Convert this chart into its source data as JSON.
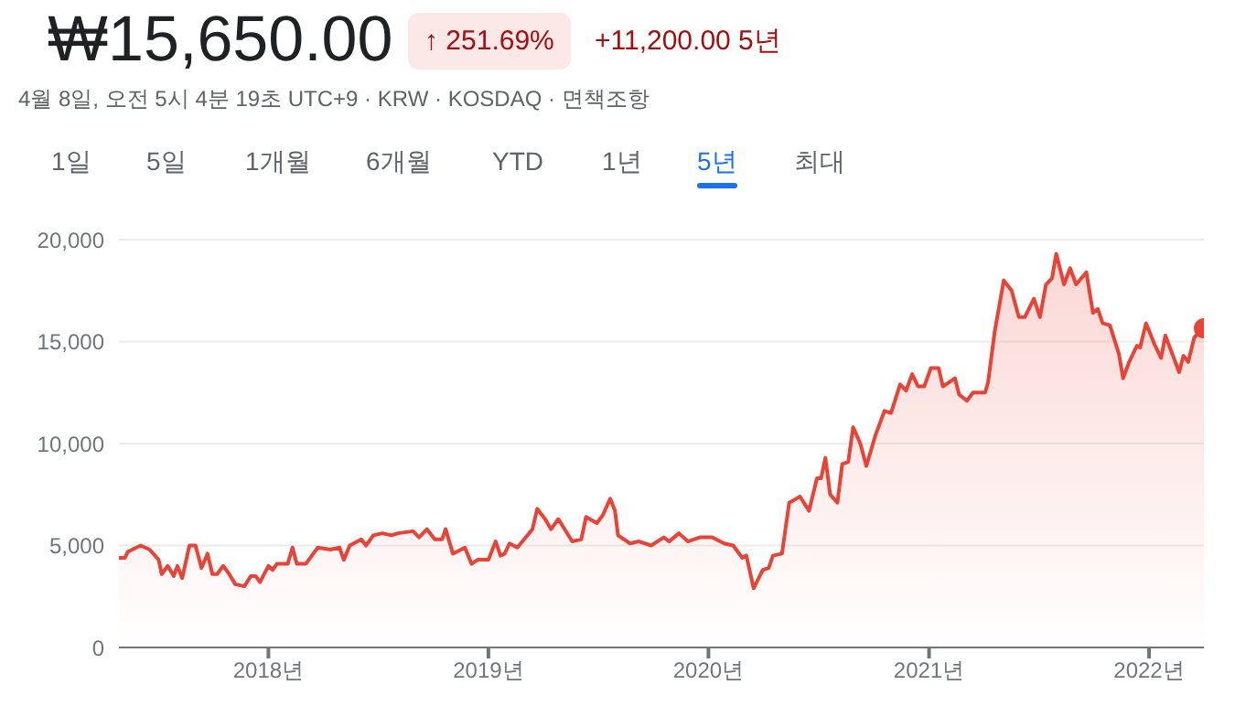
{
  "chart_data": {
    "type": "area",
    "title": "₩15,650.00",
    "subtitle": "4월 8일, 오전 5시 4분 19초 UTC+9 · KRW · KOSDAQ · 면책조항",
    "annotations": [
      "↑ 251.69%",
      "+11,200.00 5년",
      "1일",
      "5일",
      "1개월",
      "6개월",
      "YTD",
      "1년",
      "5년",
      "최대"
    ],
    "series": [
      {
        "color": "#ea4335",
        "x": [
          "2017-04-28",
          "2017-05-08",
          "2017-05-13",
          "2017-06-03",
          "2017-06-18",
          "2017-07-03",
          "2017-07-08",
          "2017-07-18",
          "2017-07-28",
          "2017-08-03",
          "2017-08-11",
          "2017-08-23",
          "2017-09-02",
          "2017-09-12",
          "2017-09-22",
          "2017-09-30",
          "2017-10-08",
          "2017-10-18",
          "2017-10-28",
          "2017-11-07",
          "2017-11-22",
          "2017-12-03",
          "2017-12-11",
          "2017-12-18",
          "2018-01-01",
          "2018-01-08",
          "2018-01-15",
          "2018-02-02",
          "2018-02-10",
          "2018-02-17",
          "2018-03-04",
          "2018-03-14",
          "2018-03-24",
          "2018-04-14",
          "2018-04-29",
          "2018-05-06",
          "2018-05-16",
          "2018-06-04",
          "2018-06-12",
          "2018-06-24",
          "2018-07-09",
          "2018-07-24",
          "2018-08-04",
          "2018-08-29",
          "2018-09-08",
          "2018-09-21",
          "2018-10-04",
          "2018-10-16",
          "2018-10-22",
          "2018-11-03",
          "2018-11-23",
          "2018-12-04",
          "2018-12-14",
          "2019-01-01",
          "2019-01-13",
          "2019-01-21",
          "2019-01-28",
          "2019-02-05",
          "2019-02-18",
          "2019-03-15",
          "2019-03-23",
          "2019-04-05",
          "2019-04-15",
          "2019-04-27",
          "2019-05-20",
          "2019-06-04",
          "2019-06-12",
          "2019-06-30",
          "2019-07-10",
          "2019-07-22",
          "2019-07-30",
          "2019-08-04",
          "2019-08-24",
          "2019-09-08",
          "2019-09-28",
          "2019-10-19",
          "2019-10-28",
          "2019-11-13",
          "2019-11-28",
          "2019-12-18",
          "2020-01-07",
          "2020-01-27",
          "2020-02-11",
          "2020-02-26",
          "2020-03-04",
          "2020-03-16",
          "2020-03-31",
          "2020-04-10",
          "2020-04-17",
          "2020-05-02",
          "2020-05-14",
          "2020-06-01",
          "2020-06-16",
          "2020-06-29",
          "2020-07-06",
          "2020-07-13",
          "2020-07-21",
          "2020-08-02",
          "2020-08-10",
          "2020-08-20",
          "2020-08-28",
          "2020-09-09",
          "2020-09-19",
          "2020-10-04",
          "2020-10-19",
          "2020-10-30",
          "2020-11-14",
          "2020-11-24",
          "2020-12-04",
          "2020-12-14",
          "2020-12-24",
          "2021-01-04",
          "2021-01-17",
          "2021-01-24",
          "2021-02-13",
          "2021-02-20",
          "2021-03-05",
          "2021-03-15",
          "2021-04-04",
          "2021-04-09",
          "2021-04-20",
          "2021-05-05",
          "2021-05-18",
          "2021-05-30",
          "2021-06-09",
          "2021-06-24",
          "2021-07-04",
          "2021-07-14",
          "2021-07-24",
          "2021-07-31",
          "2021-08-13",
          "2021-08-23",
          "2021-09-02",
          "2021-09-19",
          "2021-09-30",
          "2021-10-08",
          "2021-10-16",
          "2021-10-28",
          "2021-11-12",
          "2021-11-19",
          "2021-11-29",
          "2021-12-12",
          "2021-12-17",
          "2021-12-27",
          "2022-01-11",
          "2022-01-21",
          "2022-01-28",
          "2022-02-20",
          "2022-02-27",
          "2022-03-07",
          "2022-03-17",
          "2022-04-02"
        ],
        "values": [
          4400,
          4400,
          4700,
          5000,
          4800,
          4300,
          3600,
          4000,
          3500,
          4000,
          3400,
          5000,
          5000,
          3900,
          4600,
          3600,
          3600,
          4000,
          3600,
          3100,
          3000,
          3500,
          3500,
          3200,
          4000,
          3800,
          4100,
          4100,
          4900,
          4100,
          4100,
          4500,
          4900,
          4800,
          4900,
          4300,
          5000,
          5300,
          5000,
          5500,
          5600,
          5500,
          5600,
          5700,
          5400,
          5800,
          5300,
          5300,
          5800,
          4600,
          4900,
          4100,
          4300,
          4300,
          5200,
          4500,
          4600,
          5100,
          4900,
          5800,
          6800,
          6300,
          5800,
          6300,
          5200,
          5300,
          6400,
          6100,
          6500,
          7300,
          6700,
          5500,
          5100,
          5200,
          5000,
          5400,
          5200,
          5600,
          5200,
          5400,
          5400,
          5100,
          5000,
          4400,
          4500,
          2900,
          3800,
          3900,
          4500,
          4600,
          7100,
          7400,
          6700,
          8300,
          8300,
          9300,
          7500,
          7100,
          9000,
          9100,
          10800,
          10000,
          8900,
          10400,
          11600,
          11500,
          12900,
          12600,
          13400,
          12800,
          12800,
          13700,
          13700,
          12800,
          13200,
          12400,
          12100,
          12500,
          12500,
          13000,
          15500,
          18000,
          17500,
          16200,
          16200,
          17100,
          16200,
          17800,
          18100,
          19300,
          17800,
          18600,
          17800,
          18400,
          16400,
          16600,
          15900,
          15800,
          14400,
          13200,
          14000,
          14800,
          14700,
          15900,
          14800,
          14200,
          15300,
          13500,
          14300,
          14000,
          15200,
          15650
        ]
      },
      {
        "type": "scatter",
        "color": "#ea4335",
        "x": [
          "2022-04-02"
        ],
        "values": [
          15650
        ]
      }
    ],
    "xlim": [
      "2017-04-28",
      "2022-04-02"
    ],
    "xticks": [
      {
        "value": "2018-01-01",
        "label": "2018년"
      },
      {
        "value": "2019-01-01",
        "label": "2019년"
      },
      {
        "value": "2020-01-01",
        "label": "2020년"
      },
      {
        "value": "2021-01-01",
        "label": "2021년"
      },
      {
        "value": "2022-01-01",
        "label": "2022년"
      }
    ],
    "ylim": [
      0,
      20000
    ],
    "yticks": [
      0,
      {
        "value": 5000,
        "label": "5,000"
      },
      {
        "value": 10000,
        "label": "10,000"
      },
      {
        "value": 15000,
        "label": "15,000"
      },
      {
        "value": 20000,
        "label": "20,000"
      }
    ],
    "grid": "y",
    "legend": false
  }
}
